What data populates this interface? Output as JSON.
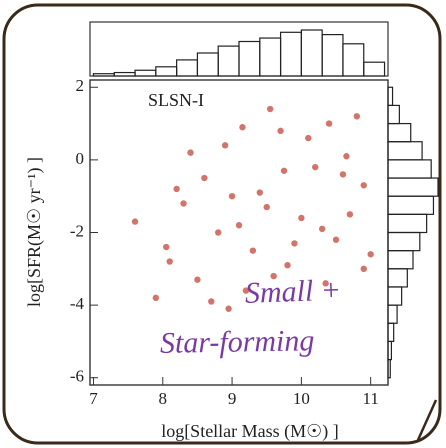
{
  "chart_data": [
    {
      "type": "scatter",
      "x_label": "log[Stellar Mass (M☉) ]",
      "y_label": "log[SFR(M☉ yr⁻¹) ]",
      "annotations": [
        "SLSN-I",
        "Small +",
        "Star-forming"
      ],
      "xlim": [
        6.95,
        11.25
      ],
      "ylim": [
        -6.2,
        2.2
      ],
      "xticks": [
        7,
        8,
        9,
        10,
        11
      ],
      "yticks": [
        2,
        0,
        -2,
        -4,
        -6
      ],
      "color": "#c0392b",
      "x": [
        8.3,
        8.6,
        8.9,
        9.1,
        9.4,
        9.7,
        9.9,
        10.2,
        10.4,
        10.7,
        10.9,
        8.1,
        8.5,
        8.8,
        9.2,
        9.5,
        9.8,
        10.1,
        10.3,
        10.6,
        10.8,
        11.0,
        8.2,
        8.7,
        9.0,
        9.3,
        9.6,
        10.0,
        10.5,
        10.9,
        7.6,
        7.9,
        8.4,
        9.15,
        9.75,
        10.35,
        10.65,
        8.05,
        8.95,
        9.55
      ],
      "values": [
        -1.2,
        -0.5,
        0.4,
        -1.8,
        -0.9,
        0.8,
        -2.3,
        -0.2,
        1.0,
        -1.5,
        -0.7,
        -2.8,
        -3.3,
        -2.0,
        -3.6,
        -1.3,
        -2.9,
        0.6,
        -1.9,
        -0.4,
        1.2,
        -2.6,
        -0.8,
        -3.9,
        -1.0,
        -2.5,
        -3.2,
        -1.6,
        -2.2,
        -3.0,
        -1.7,
        -3.8,
        0.2,
        0.9,
        -0.3,
        -3.4,
        0.1,
        -2.4,
        -4.1,
        1.4
      ]
    },
    {
      "type": "histogram",
      "orientation": "top",
      "color": "#222",
      "bins": [
        7.0,
        7.3,
        7.6,
        7.9,
        8.2,
        8.5,
        8.8,
        9.1,
        9.4,
        9.7,
        10.0,
        10.3,
        10.6,
        10.9,
        11.2
      ],
      "values": [
        2,
        3,
        5,
        8,
        14,
        20,
        26,
        30,
        33,
        38,
        40,
        36,
        28,
        12
      ]
    },
    {
      "type": "histogram",
      "orientation": "right",
      "color": "#222",
      "bins": [
        -6.0,
        -5.5,
        -5.0,
        -4.5,
        -4.0,
        -3.5,
        -3.0,
        -2.5,
        -2.0,
        -1.5,
        -1.0,
        -0.5,
        0.0,
        0.5,
        1.0,
        1.5,
        2.0
      ],
      "values": [
        2,
        3,
        5,
        8,
        12,
        17,
        22,
        28,
        34,
        40,
        44,
        38,
        30,
        20,
        10,
        4
      ]
    }
  ]
}
